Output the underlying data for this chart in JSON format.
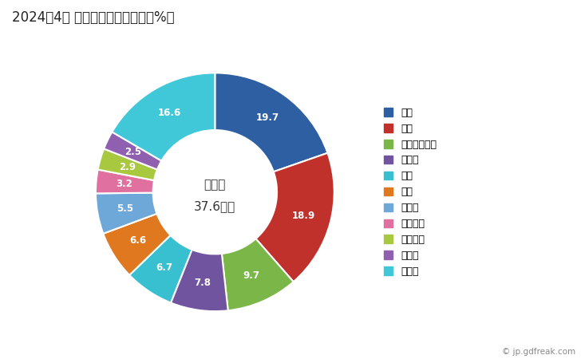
{
  "title": "2024年4月 輸出相手国のシェア（%）",
  "center_text_line1": "総　額",
  "center_text_line2": "37.6億円",
  "labels": [
    "中国",
    "米国",
    "インドネシア",
    "トルコ",
    "タイ",
    "韓国",
    "インド",
    "オランダ",
    "ブラジル",
    "チェコ",
    "その他"
  ],
  "values": [
    19.7,
    18.9,
    9.7,
    7.8,
    6.7,
    6.6,
    5.5,
    3.2,
    2.9,
    2.5,
    16.6
  ],
  "colors": [
    "#2E5FA3",
    "#C0312B",
    "#7AB648",
    "#7154A0",
    "#38C0D0",
    "#E07820",
    "#6EA8D8",
    "#E070A0",
    "#A8C840",
    "#9060B0",
    "#40C8D8"
  ],
  "watermark": "© jp.gdfreak.com"
}
